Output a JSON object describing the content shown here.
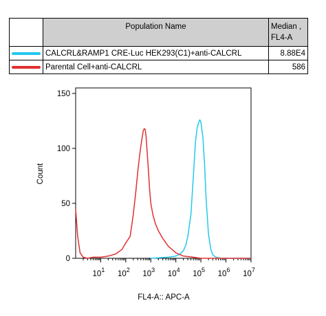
{
  "legend": {
    "header_name": "Population Name",
    "header_median_line1": "Median ,",
    "header_median_line2": "FL4-A",
    "rows": [
      {
        "name": "CALCRL&RAMP1 CRE-Luc HEK293(C1)+anti-CALCRL",
        "median": "8.88E4",
        "color": "#22c8ee"
      },
      {
        "name": "Parental Cell+anti-CALCRL",
        "median": "586",
        "color": "#e03030"
      }
    ]
  },
  "chart_data": {
    "type": "line",
    "xlabel": "FL4-A:: APC-A",
    "ylabel": "Count",
    "x_scale": "log",
    "xlim": [
      1,
      10000000
    ],
    "ylim": [
      0,
      155
    ],
    "y_ticks": [
      0,
      50,
      100,
      150
    ],
    "x_tick_labels": [
      "10",
      "10",
      "10",
      "10",
      "10",
      "10",
      "10"
    ],
    "x_tick_exponents": [
      "1",
      "2",
      "3",
      "4",
      "5",
      "6",
      "7"
    ],
    "x_tick_values": [
      10,
      100,
      1000,
      10000,
      100000,
      1000000,
      10000000
    ],
    "series": [
      {
        "name": "CALCRL&RAMP1 CRE-Luc HEK293(C1)+anti-CALCRL",
        "color": "#22c8ee",
        "x": [
          1000,
          5000,
          10000,
          15000,
          20000,
          25000,
          30000,
          40000,
          50000,
          60000,
          70000,
          80000,
          90000,
          100000,
          120000,
          140000,
          160000,
          200000,
          250000,
          300000,
          400000,
          600000,
          1000000,
          10000000
        ],
        "y": [
          0,
          1,
          2,
          4,
          7,
          12,
          20,
          40,
          75,
          105,
          118,
          123,
          126,
          124,
          110,
          85,
          55,
          22,
          8,
          3,
          1,
          0,
          0,
          0
        ]
      },
      {
        "name": "Parental Cell+anti-CALCRL",
        "color": "#e03030",
        "x": [
          1,
          1.2,
          1.5,
          2,
          3,
          5,
          10,
          20,
          40,
          70,
          100,
          150,
          200,
          250,
          300,
          350,
          400,
          450,
          500,
          550,
          600,
          650,
          700,
          800,
          900,
          1000,
          1200,
          1500,
          2000,
          3000,
          5000,
          10000,
          20000,
          50000,
          100000,
          1000000,
          10000000
        ],
        "y": [
          45,
          20,
          5,
          1,
          0,
          1,
          1,
          2,
          4,
          8,
          14,
          20,
          40,
          60,
          78,
          92,
          102,
          110,
          116,
          118,
          117,
          110,
          100,
          80,
          62,
          50,
          40,
          32,
          25,
          18,
          11,
          5,
          2,
          1,
          0,
          0,
          0
        ]
      }
    ]
  }
}
